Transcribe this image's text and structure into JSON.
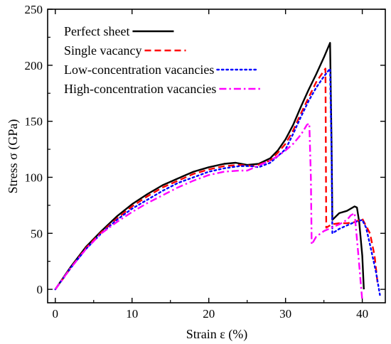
{
  "chart_data": {
    "type": "line",
    "title": "",
    "xlabel": "Strain ε (%)",
    "ylabel": "Stress σ (GPa)",
    "xlim": [
      -1,
      43
    ],
    "ylim": [
      -12,
      250
    ],
    "xticks": [
      0,
      10,
      20,
      30,
      40
    ],
    "yticks": [
      0,
      50,
      100,
      150,
      200,
      250
    ],
    "legend": "top-left",
    "grid": false,
    "series": [
      {
        "name": "Perfect sheet",
        "color": "#000000",
        "dash": "solid",
        "x": [
          0,
          2,
          4,
          6,
          8,
          10,
          12,
          14,
          16,
          18,
          20,
          22,
          23.5,
          25,
          26.5,
          28,
          29,
          30,
          31,
          32,
          33,
          34,
          35,
          35.8,
          36,
          36.1,
          37,
          38,
          39,
          39.3,
          39.6,
          40,
          40.2
        ],
        "y": [
          0,
          20,
          38,
          52,
          65,
          76,
          85,
          93,
          99,
          105,
          109,
          112,
          113,
          111,
          112,
          117,
          124,
          134,
          147,
          163,
          178,
          192,
          207,
          220,
          130,
          62,
          68,
          70,
          74,
          73,
          60,
          30,
          0
        ]
      },
      {
        "name": "Single vacancy",
        "color": "#ff0000",
        "dash": "dashed",
        "x": [
          0,
          2,
          4,
          6,
          8,
          10,
          12,
          14,
          16,
          18,
          20,
          22,
          24,
          26,
          28,
          29,
          30,
          31,
          32,
          33,
          34,
          35,
          35.2,
          35.3,
          36,
          37,
          38,
          39,
          40,
          41,
          41.6,
          42
        ],
        "y": [
          0,
          19,
          37,
          51,
          63,
          74,
          83,
          91,
          97,
          103,
          107,
          110,
          111,
          110,
          115,
          122,
          130,
          142,
          157,
          171,
          185,
          195,
          197,
          55,
          58,
          59,
          59,
          60,
          63,
          50,
          30,
          5
        ]
      },
      {
        "name": "Low-concentration vacancies",
        "color": "#0000ff",
        "dash": "dotted",
        "x": [
          0,
          2,
          4,
          6,
          8,
          10,
          12,
          14,
          16,
          18,
          20,
          22,
          24,
          25.5,
          26.5,
          28,
          30,
          31,
          32,
          33,
          34,
          35,
          35.8,
          36,
          36.1,
          37,
          38,
          39,
          40,
          40.5,
          41,
          41.8,
          42.3
        ],
        "y": [
          0,
          19,
          36,
          50,
          62,
          72,
          80,
          88,
          95,
          100,
          105,
          108,
          110,
          110,
          109,
          113,
          125,
          139,
          154,
          168,
          180,
          190,
          197,
          120,
          50,
          54,
          57,
          60,
          62,
          55,
          40,
          15,
          -5
        ]
      },
      {
        "name": "High-concentration vacancies",
        "color": "#ff00ff",
        "dash": "dashdot",
        "x": [
          0,
          2,
          4,
          6,
          8,
          10,
          12,
          14,
          16,
          18,
          20,
          22,
          24,
          25,
          26,
          27,
          28,
          29,
          30,
          31,
          32,
          32.8,
          33.1,
          33.3,
          33.4,
          34,
          35,
          36,
          37,
          38,
          38.5,
          39,
          39.5,
          39.8,
          40
        ],
        "y": [
          0,
          19,
          36,
          50,
          60,
          69,
          77,
          84,
          91,
          97,
          102,
          105,
          106,
          106,
          109,
          112,
          115,
          119,
          124,
          130,
          138,
          147,
          148,
          100,
          40,
          47,
          52,
          55,
          58,
          62,
          66,
          68,
          30,
          5,
          -10
        ]
      }
    ]
  }
}
